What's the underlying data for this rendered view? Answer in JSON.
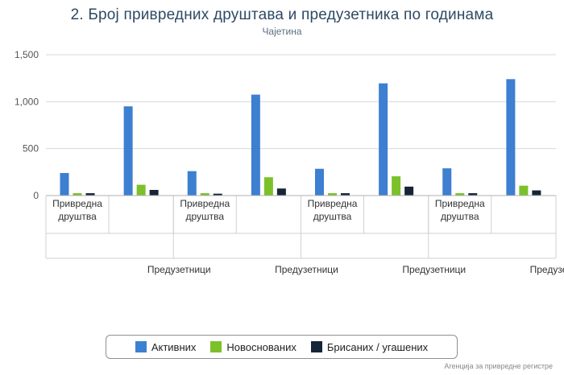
{
  "title": "2. Број привредних друштава и предузетника по годинама",
  "subtitle": "Чајетина",
  "credits": "Агенција за привредне регистре",
  "chart_data": {
    "type": "bar",
    "ylim": [
      0,
      1500
    ],
    "yticks": [
      0,
      500,
      1000,
      1500
    ],
    "ytick_labels": [
      "0",
      "500",
      "1,000",
      "1,500"
    ],
    "grid": true,
    "legend_position": "bottom-center",
    "groups": [
      {
        "categories": [
          {
            "label": "Привредна друштва",
            "values": [
              240,
              25,
              25
            ]
          },
          {
            "label": "Предузетници",
            "values": [
              950,
              115,
              60
            ]
          }
        ]
      },
      {
        "categories": [
          {
            "label": "Привредна друштва",
            "values": [
              260,
              25,
              20
            ]
          },
          {
            "label": "Предузетници",
            "values": [
              1075,
              195,
              75
            ]
          }
        ]
      },
      {
        "categories": [
          {
            "label": "Привредна друштва",
            "values": [
              285,
              25,
              25
            ]
          },
          {
            "label": "Предузетници",
            "values": [
              1195,
              205,
              95
            ]
          }
        ]
      },
      {
        "categories": [
          {
            "label": "Привредна друштва",
            "values": [
              290,
              25,
              25
            ]
          },
          {
            "label": "Предузетници",
            "values": [
              1240,
              105,
              55
            ]
          }
        ]
      }
    ],
    "series": [
      {
        "name": "Активних",
        "color": "#3d7fd0"
      },
      {
        "name": "Новоснованих",
        "color": "#7cc12a"
      },
      {
        "name": "Брисаних / угашених",
        "color": "#152636"
      }
    ]
  }
}
